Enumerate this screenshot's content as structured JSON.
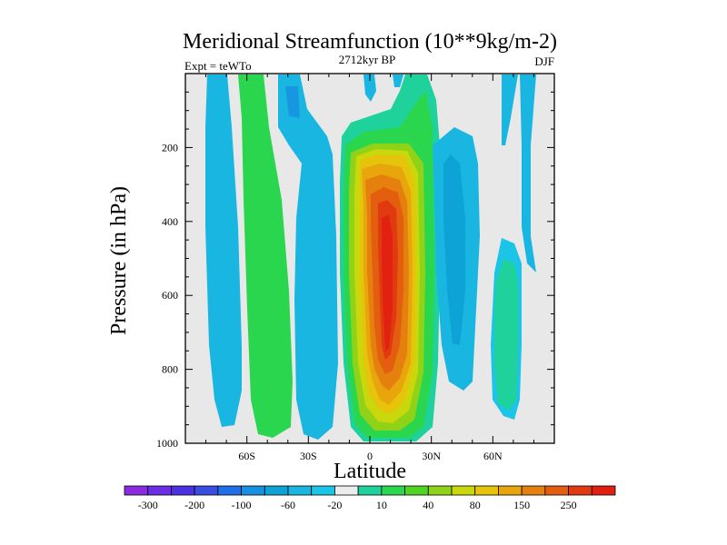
{
  "chart_data": {
    "type": "heatmap",
    "title": "Meridional Streamfunction (10**9kg/m-2)",
    "subtitle_left": "Expt = teWTo",
    "subtitle_center": "2712kyr BP",
    "subtitle_right": "DJF",
    "xlabel": "Latitude",
    "ylabel": "Pressure (in hPa)",
    "xlim": [
      -90,
      90
    ],
    "ylim": [
      1000,
      0
    ],
    "x_ticks": [
      {
        "value": -60,
        "label": "60S"
      },
      {
        "value": -30,
        "label": "30S"
      },
      {
        "value": 0,
        "label": "0"
      },
      {
        "value": 30,
        "label": "30N"
      },
      {
        "value": 60,
        "label": "60N"
      }
    ],
    "y_ticks": [
      {
        "value": 200,
        "label": "200"
      },
      {
        "value": 400,
        "label": "400"
      },
      {
        "value": 600,
        "label": "600"
      },
      {
        "value": 800,
        "label": "800"
      },
      {
        "value": 1000,
        "label": "1000"
      }
    ],
    "colorbar": {
      "levels": [
        "-300",
        "-200",
        "-100",
        "-60",
        "-20",
        "10",
        "40",
        "80",
        "150",
        "250"
      ],
      "colors": [
        "#8a2be2",
        "#6a2ee6",
        "#4b30e4",
        "#3a4de2",
        "#1f6fe8",
        "#1690e0",
        "#0ea3d6",
        "#19b6e1",
        "#1cc4e8",
        "#ececec",
        "#1fd19a",
        "#2bd64f",
        "#4fd424",
        "#90d217",
        "#c8d80c",
        "#e5c40b",
        "#e8a60c",
        "#e5800e",
        "#e35e0f",
        "#e23a10",
        "#e01f12"
      ]
    },
    "background_color": "#e8e8e8",
    "note": "Contour shading of the meridional streamfunction: blue/green = weak circulation, yellow-to-red = strong positive cell centered just north of the equator (~5N) between ~300 and 900 hPa."
  }
}
